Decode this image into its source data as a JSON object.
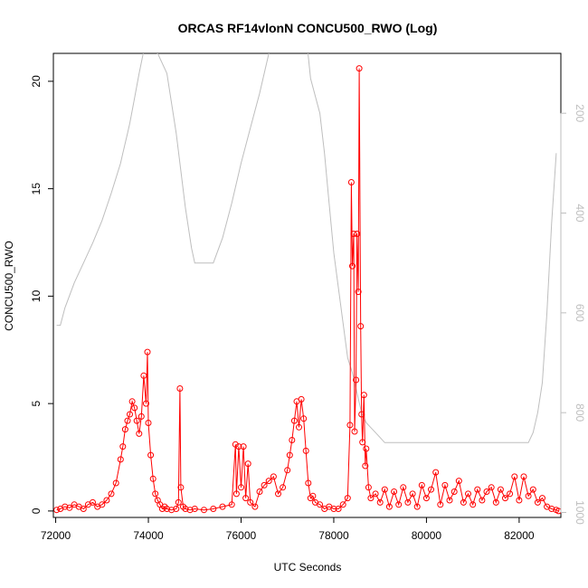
{
  "chart_data": {
    "type": "line",
    "title": "ORCAS RF14vlonN CONCU500_RWO (Log)",
    "xlabel": "UTC Seconds",
    "ylabel": "CONCU500_RWO",
    "xlim": [
      71950,
      82900
    ],
    "ylim": [
      -0.3,
      21.3
    ],
    "x_ticks": [
      72000,
      74000,
      76000,
      78000,
      80000,
      82000
    ],
    "y_ticks": [
      0,
      5,
      10,
      15,
      20
    ],
    "y2_ticks": [
      200,
      400,
      600,
      800,
      1000
    ],
    "y2lim": [
      1010,
      80
    ],
    "grid": false,
    "series": [
      {
        "color": "#ff0000",
        "style": "line+points",
        "x": [
          72020,
          72100,
          72200,
          72300,
          72400,
          72500,
          72600,
          72700,
          72800,
          72900,
          73000,
          73100,
          73200,
          73300,
          73400,
          73450,
          73500,
          73550,
          73600,
          73650,
          73700,
          73750,
          73800,
          73850,
          73900,
          73950,
          73980,
          74000,
          74050,
          74100,
          74150,
          74200,
          74250,
          74300,
          74350,
          74400,
          74500,
          74600,
          74650,
          74680,
          74700,
          74750,
          74800,
          74900,
          75000,
          75200,
          75400,
          75600,
          75800,
          75880,
          75900,
          75950,
          76000,
          76050,
          76100,
          76150,
          76200,
          76300,
          76400,
          76500,
          76600,
          76700,
          76800,
          76900,
          77000,
          77050,
          77100,
          77150,
          77200,
          77250,
          77300,
          77350,
          77400,
          77450,
          77500,
          77550,
          77600,
          77700,
          77800,
          77900,
          78000,
          78100,
          78200,
          78300,
          78350,
          78380,
          78400,
          78430,
          78450,
          78480,
          78500,
          78530,
          78550,
          78580,
          78600,
          78620,
          78650,
          78680,
          78700,
          78750,
          78800,
          78900,
          79000,
          79100,
          79200,
          79300,
          79400,
          79500,
          79600,
          79700,
          79800,
          79900,
          80000,
          80100,
          80200,
          80300,
          80400,
          80500,
          80600,
          80700,
          80800,
          80900,
          81000,
          81100,
          81200,
          81300,
          81400,
          81500,
          81600,
          81700,
          81800,
          81900,
          82000,
          82100,
          82200,
          82300,
          82400,
          82500,
          82600,
          82700,
          82800,
          82850
        ],
        "y": [
          0.05,
          0.1,
          0.2,
          0.15,
          0.3,
          0.2,
          0.1,
          0.3,
          0.4,
          0.2,
          0.3,
          0.5,
          0.8,
          1.3,
          2.4,
          3.0,
          3.8,
          4.2,
          4.5,
          5.1,
          4.8,
          4.2,
          3.6,
          4.4,
          6.3,
          5.0,
          7.4,
          4.1,
          2.6,
          1.5,
          0.8,
          0.5,
          0.3,
          0.1,
          0.2,
          0.1,
          0.05,
          0.1,
          0.4,
          5.7,
          1.1,
          0.2,
          0.1,
          0.05,
          0.1,
          0.05,
          0.1,
          0.2,
          0.3,
          3.1,
          0.8,
          3.0,
          1.1,
          3.0,
          0.6,
          2.2,
          0.4,
          0.2,
          0.9,
          1.2,
          1.4,
          1.6,
          0.8,
          1.1,
          1.9,
          2.6,
          3.3,
          4.2,
          5.1,
          3.9,
          5.2,
          4.3,
          2.8,
          1.3,
          0.6,
          0.7,
          0.4,
          0.3,
          0.1,
          0.2,
          0.1,
          0.1,
          0.3,
          0.6,
          4.0,
          15.3,
          11.4,
          12.9,
          3.7,
          6.1,
          12.9,
          10.2,
          20.6,
          8.6,
          4.5,
          3.2,
          5.4,
          2.1,
          2.9,
          1.1,
          0.6,
          0.8,
          0.4,
          1.0,
          0.2,
          0.9,
          0.3,
          1.1,
          0.4,
          0.8,
          0.2,
          1.2,
          0.6,
          1.0,
          1.8,
          0.3,
          1.2,
          0.5,
          0.9,
          1.4,
          0.4,
          0.8,
          0.3,
          1.0,
          0.5,
          0.9,
          1.1,
          0.4,
          1.0,
          0.6,
          0.8,
          1.6,
          0.5,
          1.6,
          0.7,
          1.0,
          0.4,
          0.6,
          0.2,
          0.1,
          0.05,
          0.0
        ]
      },
      {
        "color": "#bebebe",
        "style": "line",
        "axis": "right",
        "x": [
          72020,
          72100,
          72200,
          72400,
          72600,
          72800,
          73000,
          73200,
          73400,
          73450,
          73500,
          73550,
          73600,
          73700,
          73800,
          73900,
          74000,
          74050,
          74100,
          74200,
          74400,
          74600,
          74800,
          74930,
          75000,
          75200,
          75300,
          75400,
          75600,
          75800,
          76000,
          76200,
          76400,
          76600,
          76800,
          77000,
          77050,
          77100,
          77200,
          77300,
          77400,
          77500,
          77700,
          77800,
          77900,
          78000,
          78100,
          78200,
          78300,
          78400,
          78500,
          78600,
          78700,
          78800,
          78900,
          79000,
          79100,
          79200,
          79500,
          80000,
          80500,
          81000,
          81500,
          82000,
          82200,
          82300,
          82400,
          82500,
          82600,
          82700,
          82800
        ],
        "y": [
          625,
          625,
          590,
          540,
          500,
          460,
          415,
          360,
          300,
          280,
          260,
          240,
          220,
          170,
          120,
          75,
          75,
          75,
          75,
          80,
          120,
          240,
          390,
          470,
          500,
          500,
          500,
          500,
          450,
          380,
          300,
          230,
          160,
          80,
          20,
          10,
          10,
          10,
          10,
          20,
          40,
          130,
          200,
          280,
          380,
          480,
          550,
          620,
          690,
          720,
          760,
          800,
          820,
          830,
          840,
          850,
          860,
          860,
          860,
          860,
          860,
          860,
          860,
          860,
          860,
          840,
          800,
          740,
          600,
          420,
          280
        ]
      }
    ]
  }
}
